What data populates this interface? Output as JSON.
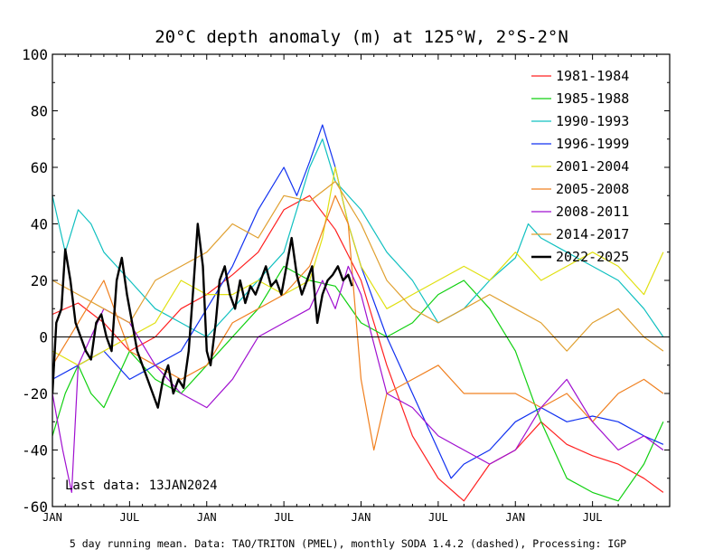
{
  "chart_data": {
    "type": "line",
    "title": "20°C depth anomaly (m) at 125°W, 2°S-2°N",
    "footnote": "5 day running mean.  Data: TAO/TRITON (PMEL), monthly SODA 1.4.2 (dashed), Processing: IGP",
    "annotation": "Last data: 13JAN2024",
    "xlabel": "",
    "ylabel": "",
    "ylim": [
      -60,
      100
    ],
    "yticks": [
      "100",
      "80",
      "60",
      "40",
      "20",
      "0",
      "-20",
      "-40",
      "-60"
    ],
    "xticks": [
      "JAN",
      "JUL",
      "JAN",
      "JUL",
      "JAN",
      "JUL",
      "JAN",
      "JUL"
    ],
    "xunit": "months from January of year 1 of each episode",
    "xlim": [
      0,
      48
    ],
    "legend_position": "top-right",
    "grid": false,
    "zero_line": true,
    "series": [
      {
        "name": "1981-1984",
        "color": "#ff2020",
        "width": 1.2,
        "x": [
          0,
          2,
          4,
          6,
          8,
          10,
          12,
          14,
          16,
          18,
          20,
          22,
          24,
          26,
          28,
          30,
          32,
          34,
          36,
          38,
          40,
          42,
          44,
          46,
          47.5
        ],
        "y": [
          8,
          12,
          5,
          -5,
          0,
          10,
          15,
          22,
          30,
          45,
          50,
          38,
          20,
          -10,
          -35,
          -50,
          -58,
          -45,
          -40,
          -30,
          -38,
          -42,
          -45,
          -50,
          -55
        ]
      },
      {
        "name": "1985-1988",
        "color": "#10d010",
        "width": 1.2,
        "x": [
          0,
          1,
          2,
          3,
          4,
          6,
          8,
          10,
          12,
          14,
          16,
          18,
          20,
          22,
          24,
          26,
          28,
          30,
          32,
          34,
          36,
          38,
          40,
          42,
          44,
          46,
          47.5
        ],
        "y": [
          -35,
          -20,
          -10,
          -20,
          -25,
          -5,
          -15,
          -20,
          -10,
          0,
          10,
          25,
          20,
          18,
          5,
          0,
          5,
          15,
          20,
          10,
          -5,
          -30,
          -50,
          -55,
          -58,
          -45,
          -30
        ]
      },
      {
        "name": "1990-1993",
        "color": "#10c0c0",
        "width": 1.2,
        "x": [
          0,
          1,
          2,
          3,
          4,
          6,
          8,
          10,
          12,
          14,
          16,
          18,
          19,
          20,
          21,
          22,
          24,
          26,
          28,
          30,
          32,
          34,
          36,
          37,
          38,
          40,
          42,
          44,
          46,
          47.5
        ],
        "y": [
          50,
          30,
          45,
          40,
          30,
          20,
          10,
          5,
          0,
          10,
          20,
          30,
          45,
          60,
          70,
          55,
          45,
          30,
          20,
          5,
          10,
          20,
          28,
          40,
          35,
          30,
          25,
          20,
          10,
          0
        ]
      },
      {
        "name": "1996-1999",
        "color": "#1030f0",
        "width": 1.2,
        "x": [
          0,
          2,
          4,
          6,
          8,
          10,
          12,
          14,
          16,
          18,
          19,
          20,
          21,
          22,
          23,
          24,
          26,
          28,
          30,
          31,
          32,
          34,
          36,
          38,
          40,
          42,
          44,
          46,
          47.5
        ],
        "y": [
          -15,
          -10,
          -5,
          -15,
          -10,
          -5,
          10,
          25,
          45,
          60,
          50,
          62,
          75,
          60,
          40,
          25,
          0,
          -20,
          -40,
          -50,
          -45,
          -40,
          -30,
          -25,
          -30,
          -28,
          -30,
          -35,
          -38
        ]
      },
      {
        "name": "2001-2004",
        "color": "#e0e010",
        "width": 1.2,
        "x": [
          0,
          2,
          4,
          6,
          8,
          10,
          12,
          14,
          16,
          18,
          20,
          21,
          22,
          23,
          24,
          26,
          28,
          30,
          32,
          34,
          36,
          38,
          40,
          42,
          44,
          46,
          47.5
        ],
        "y": [
          -5,
          -10,
          -5,
          0,
          5,
          20,
          15,
          15,
          20,
          15,
          20,
          35,
          60,
          40,
          25,
          10,
          15,
          20,
          25,
          20,
          30,
          20,
          25,
          30,
          25,
          15,
          30
        ]
      },
      {
        "name": "2005-2008",
        "color": "#f08020",
        "width": 1.2,
        "x": [
          0,
          2,
          4,
          6,
          8,
          10,
          12,
          14,
          16,
          18,
          20,
          22,
          23,
          24,
          25,
          26,
          28,
          30,
          32,
          34,
          36,
          38,
          40,
          42,
          44,
          46,
          47.5
        ],
        "y": [
          -10,
          5,
          20,
          -5,
          -10,
          -15,
          -10,
          5,
          10,
          15,
          25,
          50,
          40,
          -15,
          -40,
          -20,
          -15,
          -10,
          -20,
          -20,
          -20,
          -25,
          -20,
          -30,
          -20,
          -15,
          -20
        ]
      },
      {
        "name": "2008-2011",
        "color": "#a010d0",
        "width": 1.2,
        "x": [
          0,
          0.8,
          1.5,
          2,
          3,
          4,
          6,
          8,
          10,
          12,
          14,
          16,
          18,
          20,
          21,
          22,
          23,
          24,
          26,
          28,
          30,
          32,
          34,
          36,
          38,
          40,
          42,
          44,
          46,
          47.5
        ],
        "y": [
          -20,
          -40,
          -55,
          -10,
          0,
          10,
          5,
          -10,
          -20,
          -25,
          -15,
          0,
          5,
          10,
          20,
          10,
          25,
          15,
          -20,
          -25,
          -35,
          -40,
          -45,
          -40,
          -25,
          -15,
          -30,
          -40,
          -35,
          -40
        ]
      },
      {
        "name": "2014-2017",
        "color": "#e0a030",
        "width": 1.2,
        "x": [
          0,
          2,
          4,
          6,
          8,
          10,
          12,
          14,
          16,
          18,
          20,
          22,
          24,
          26,
          28,
          30,
          32,
          34,
          36,
          38,
          40,
          42,
          44,
          46,
          47.5
        ],
        "y": [
          20,
          15,
          10,
          5,
          20,
          25,
          30,
          40,
          35,
          50,
          48,
          55,
          40,
          20,
          10,
          5,
          10,
          15,
          10,
          5,
          -5,
          5,
          10,
          0,
          -5
        ]
      },
      {
        "name": "2022-2025",
        "color": "#000000",
        "width": 2.4,
        "x": [
          0,
          0.3,
          0.7,
          1,
          1.4,
          1.8,
          2.2,
          2.6,
          3,
          3.4,
          3.8,
          4.2,
          4.6,
          5,
          5.4,
          5.8,
          6.2,
          6.6,
          7,
          7.4,
          7.8,
          8.2,
          8.6,
          9,
          9.4,
          9.8,
          10.2,
          10.6,
          11,
          11.3,
          11.7,
          12,
          12.3,
          12.7,
          13,
          13.4,
          13.8,
          14.2,
          14.6,
          15,
          15.4,
          15.8,
          16.2,
          16.6,
          17,
          17.4,
          17.8,
          18.2,
          18.6,
          19,
          19.4,
          19.8,
          20.2,
          20.6,
          21,
          21.4,
          21.8,
          22.2,
          22.6,
          23,
          23.3
        ],
        "y": [
          -20,
          5,
          10,
          31,
          20,
          5,
          0,
          -5,
          -8,
          5,
          8,
          0,
          -5,
          20,
          28,
          15,
          5,
          -5,
          -10,
          -15,
          -20,
          -25,
          -15,
          -10,
          -20,
          -15,
          -18,
          -5,
          20,
          40,
          25,
          -5,
          -10,
          5,
          20,
          25,
          15,
          10,
          20,
          12,
          18,
          15,
          20,
          25,
          18,
          20,
          15,
          25,
          35,
          22,
          15,
          20,
          25,
          5,
          15,
          20,
          22,
          25,
          20,
          22,
          18
        ]
      }
    ]
  }
}
